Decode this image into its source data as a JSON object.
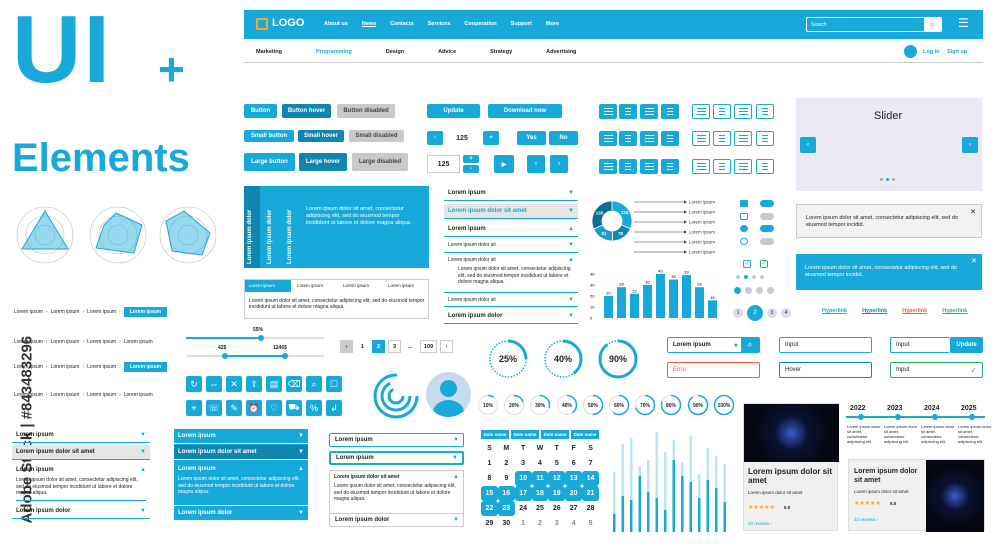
{
  "hero": {
    "title1": "UI",
    "plus": "+",
    "title2": "Elements"
  },
  "watermark": {
    "side": "Adobe Stock | #843483296"
  },
  "nav": {
    "logo": "LOGO",
    "items": [
      "About us",
      "News",
      "Contacts",
      "Services",
      "Cooperation",
      "Support",
      "More"
    ],
    "search_placeholder": "Search",
    "sub_items": [
      "Marketing",
      "Programming",
      "Design",
      "Advice",
      "Strategy",
      "Advertising"
    ],
    "login": "Log in",
    "signup": "Sign up"
  },
  "buttons": {
    "rows": [
      [
        "Button",
        "Button hover",
        "Button disabled"
      ],
      [
        "Small button",
        "Small hover",
        "Small disabled"
      ],
      [
        "Large button",
        "Large hover",
        "Large disabled"
      ]
    ],
    "update": "Update",
    "download": "Download now",
    "stepper_value": "125",
    "stepper2_value": "125",
    "minus": "-",
    "plus": "+",
    "yes": "Yes",
    "no": "No"
  },
  "slider": {
    "title": "Slider"
  },
  "alerts": {
    "a1": "Lorem ipsum dolor sit amet, consectetur adipiscing elit, sed do eiusmod tempor incidid.",
    "a2": "Lorem ipsum dolor sit amet, consectetur adipiscing elit, sed do eiusmod tempor incidid."
  },
  "vtabs": {
    "labels": [
      "Lorem ipsum dolor",
      "Lorem ipsum dolor",
      "Lorem ipsum dolor"
    ],
    "text": "Lorem ipsum dolor sit amet, consectetur adipiscing elit, sed do eiusmod tempor incididunt ut labore et dolore magna aliqua."
  },
  "htabs": {
    "labels": [
      "Lorem ipsum",
      "Lorem ipsum",
      "Lorem ipsum",
      "Lorem ipsum"
    ],
    "text": "Lorem ipsum dolor sit amet, consectetur adipiscing elit, sed do eiusmod tempor incididunt ut labore et dolore magna aliqua."
  },
  "accordion1": {
    "items": [
      "Lorem ipsum",
      "Lorem ipsum dolor sit amet",
      "Lorem ipsum dolor"
    ],
    "sub": [
      "Lorem ipsum dolor sit",
      "Lorem ipsum dolor sit",
      "Lorem ipsum dolor sit",
      "Lorem ipsum dolor"
    ],
    "text": "Lorem ipsum dolor sit amet, consectetur adipiscing elit, sed do eiusmod tempor incididunt ut labore et dolore magna aliqua."
  },
  "donut": {
    "values": [
      "134",
      "78",
      "81",
      "135"
    ]
  },
  "legend": {
    "items": [
      "Lorem ipsum",
      "Lorem ipsum",
      "Lorem ipsum",
      "Lorem ipsum",
      "Lorem ipsum",
      "Lorem ipsum"
    ]
  },
  "bar_chart": {
    "values": [
      20,
      28,
      22,
      30,
      40,
      35,
      39,
      28,
      16
    ],
    "labels": [
      "20",
      "28",
      "22",
      "30",
      "40",
      "35",
      "39",
      "28",
      "16"
    ],
    "axis": [
      "40",
      "30",
      "20",
      "10",
      "0"
    ]
  },
  "pager": {
    "items": [
      "1",
      "2",
      "3",
      "...",
      "109"
    ],
    "prev": "‹",
    "next": "›"
  },
  "range": {
    "single": "55%",
    "left": "42$",
    "right": "1246$"
  },
  "breadcrumbs": {
    "item": "Lorem ipsum"
  },
  "progress_circles": {
    "big": [
      {
        "label": "25%",
        "v": 25
      },
      {
        "label": "40%",
        "v": 40
      },
      {
        "label": "90%",
        "v": 90
      }
    ],
    "small": [
      {
        "label": "10%",
        "v": 10
      },
      {
        "label": "20%",
        "v": 20
      },
      {
        "label": "30%",
        "v": 30
      },
      {
        "label": "40%",
        "v": 40
      },
      {
        "label": "50%",
        "v": 50
      },
      {
        "label": "60%",
        "v": 60
      },
      {
        "label": "70%",
        "v": 70
      },
      {
        "label": "80%",
        "v": 80
      },
      {
        "label": "90%",
        "v": 90
      },
      {
        "label": "100%",
        "v": 100
      }
    ]
  },
  "pages_dots": {
    "items": [
      "1",
      "2",
      "3",
      "4"
    ]
  },
  "hyperlinks": {
    "items": [
      "Hyperlink",
      "Hyperlink",
      "Hyperlink",
      "Hyperlink"
    ],
    "colors": [
      "#16a9d9",
      "#0e86b0",
      "#f25a4a",
      "#2bb36b"
    ]
  },
  "inputs": {
    "search": "Lorem ipsum",
    "input1": "Input",
    "input2": "Input",
    "update": "Update",
    "error": "Error",
    "hover": "Hover",
    "input3": "Input"
  },
  "accordion2": {
    "items": [
      "Lorem ipsum",
      "Lorem ipsum dolor sit amet",
      "Lorem ipsum",
      "Lorem ipsum dolor"
    ],
    "text": "Lorem ipsum dolor sit amet, consectetur adipiscing elit, sed do eiusmod tempor incididunt ut labore et dolore magna aliqua."
  },
  "accordion3": {
    "items": [
      "Lorem ipsum",
      "Lorem ipsum dolor sit amet",
      "Lorem ipsum",
      "Lorem ipsum dolor"
    ],
    "sub": "Lorem ipsum dolor sit amet",
    "text": "Lorem ipsum dolor sit amet, consectetur adipiscing elit, sed do eiusmod tempor incididunt ut labore et dolore magna aliqua."
  },
  "dropdown": {
    "items": [
      "Lorem ipsum",
      "Lorem ipsum",
      "Lorem ipsum dolor sit amet",
      "Lorem ipsum dolor"
    ],
    "text": "Lorem ipsum dolor sit amet, consectetur adipiscing elit, sed do eiusmod tempor incididunt ut labore et dolore magna aliqua."
  },
  "calendar": {
    "headers": [
      "Date name",
      "Date name",
      "Date name",
      "Date name"
    ],
    "days": [
      "S",
      "M",
      "T",
      "W",
      "T",
      "F",
      "S"
    ],
    "rows": [
      [
        "1",
        "2",
        "3",
        "4",
        "5",
        "6",
        "7"
      ],
      [
        "8",
        "9",
        "10",
        "11",
        "12",
        "13",
        "14"
      ],
      [
        "15",
        "16",
        "17",
        "18",
        "19",
        "20",
        "21"
      ],
      [
        "22",
        "23",
        "24",
        "25",
        "26",
        "27",
        "28"
      ],
      [
        "29",
        "30",
        "1",
        "2",
        "3",
        "4",
        "5"
      ]
    ]
  },
  "cards": {
    "title": "Lorem ipsum dolor sit amet",
    "sub": "Lorem ipsum dolor sit amet",
    "rating": "5.0",
    "reviews": "33 reviews ›"
  },
  "timeline": {
    "years": [
      "2022",
      "2023",
      "2024",
      "2025"
    ],
    "text": "Lorem ipsum dolor sit amet, consectetur adipiscing elit."
  }
}
